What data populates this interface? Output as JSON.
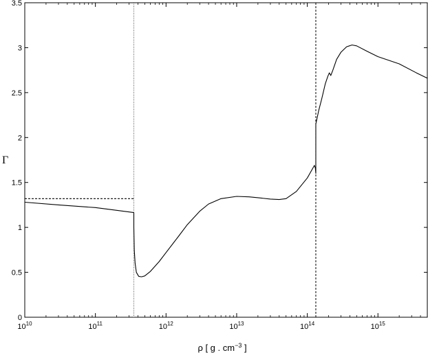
{
  "chart_data": {
    "type": "line",
    "title": "",
    "xlabel": "ρ [  g . cm",
    "xlabel_exponent": "−3",
    "xlabel_suffix": "  ]",
    "ylabel": "Γ",
    "xscale": "log",
    "xlim": [
      10000000000.0,
      5000000000000000.0
    ],
    "ylim": [
      0,
      3.5
    ],
    "grid": false,
    "legend": "none",
    "xticks": [
      {
        "value": 10000000000.0,
        "base": "10",
        "exp": "10"
      },
      {
        "value": 100000000000.0,
        "base": "10",
        "exp": "11"
      },
      {
        "value": 1000000000000.0,
        "base": "10",
        "exp": "12"
      },
      {
        "value": 10000000000000.0,
        "base": "10",
        "exp": "13"
      },
      {
        "value": 100000000000000.0,
        "base": "10",
        "exp": "14"
      },
      {
        "value": 1000000000000000.0,
        "base": "10",
        "exp": "15"
      }
    ],
    "yticks": [
      {
        "value": 0,
        "label": "0"
      },
      {
        "value": 0.5,
        "label": "0.5"
      },
      {
        "value": 1,
        "label": "1"
      },
      {
        "value": 1.5,
        "label": "1.5"
      },
      {
        "value": 2,
        "label": "2"
      },
      {
        "value": 2.5,
        "label": "2.5"
      },
      {
        "value": 3,
        "label": "3"
      },
      {
        "value": 3.5,
        "label": "3.5"
      }
    ],
    "series": [
      {
        "color": "#000000",
        "style": "solid",
        "points": [
          [
            10000000000.0,
            1.28
          ],
          [
            30000000000.0,
            1.25
          ],
          [
            100000000000.0,
            1.22
          ],
          [
            200000000000.0,
            1.19
          ],
          [
            350000000000.0,
            1.165
          ],
          [
            350000000000.0,
            1.0
          ],
          [
            355000000000.0,
            0.75
          ],
          [
            365000000000.0,
            0.6
          ],
          [
            380000000000.0,
            0.5
          ],
          [
            410000000000.0,
            0.455
          ],
          [
            450000000000.0,
            0.45
          ],
          [
            500000000000.0,
            0.46
          ],
          [
            600000000000.0,
            0.51
          ],
          [
            800000000000.0,
            0.62
          ],
          [
            1000000000000.0,
            0.72
          ],
          [
            1500000000000.0,
            0.9
          ],
          [
            2000000000000.0,
            1.03
          ],
          [
            3000000000000.0,
            1.18
          ],
          [
            4000000000000.0,
            1.26
          ],
          [
            6000000000000.0,
            1.32
          ],
          [
            10000000000000.0,
            1.345
          ],
          [
            15000000000000.0,
            1.34
          ],
          [
            20000000000000.0,
            1.33
          ],
          [
            30000000000000.0,
            1.315
          ],
          [
            40000000000000.0,
            1.31
          ],
          [
            50000000000000.0,
            1.32
          ],
          [
            70000000000000.0,
            1.4
          ],
          [
            100000000000000.0,
            1.55
          ],
          [
            120000000000000.0,
            1.66
          ],
          [
            126000000000000.0,
            1.69
          ],
          [
            130000000000000.0,
            1.66
          ],
          [
            132000000000000.0,
            1.6
          ],
          [
            132000000000000.0,
            2.15
          ],
          [
            145000000000000.0,
            2.3
          ],
          [
            160000000000000.0,
            2.43
          ],
          [
            180000000000000.0,
            2.6
          ],
          [
            195000000000000.0,
            2.68
          ],
          [
            205000000000000.0,
            2.72
          ],
          [
            215000000000000.0,
            2.69
          ],
          [
            230000000000000.0,
            2.75
          ],
          [
            260000000000000.0,
            2.87
          ],
          [
            300000000000000.0,
            2.95
          ],
          [
            360000000000000.0,
            3.01
          ],
          [
            430000000000000.0,
            3.03
          ],
          [
            500000000000000.0,
            3.02
          ],
          [
            700000000000000.0,
            2.96
          ],
          [
            1000000000000000.0,
            2.9
          ],
          [
            2000000000000000.0,
            2.82
          ],
          [
            3500000000000000.0,
            2.72
          ],
          [
            5000000000000000.0,
            2.66
          ]
        ]
      },
      {
        "color": "#000000",
        "style": "dashed",
        "points": [
          [
            10000000000.0,
            1.32
          ],
          [
            350000000000.0,
            1.32
          ]
        ]
      }
    ],
    "vlines": [
      {
        "x": 350000000000.0,
        "style": "dotted",
        "color": "#555555"
      },
      {
        "x": 132000000000000.0,
        "style": "dashed",
        "color": "#000000"
      }
    ]
  }
}
